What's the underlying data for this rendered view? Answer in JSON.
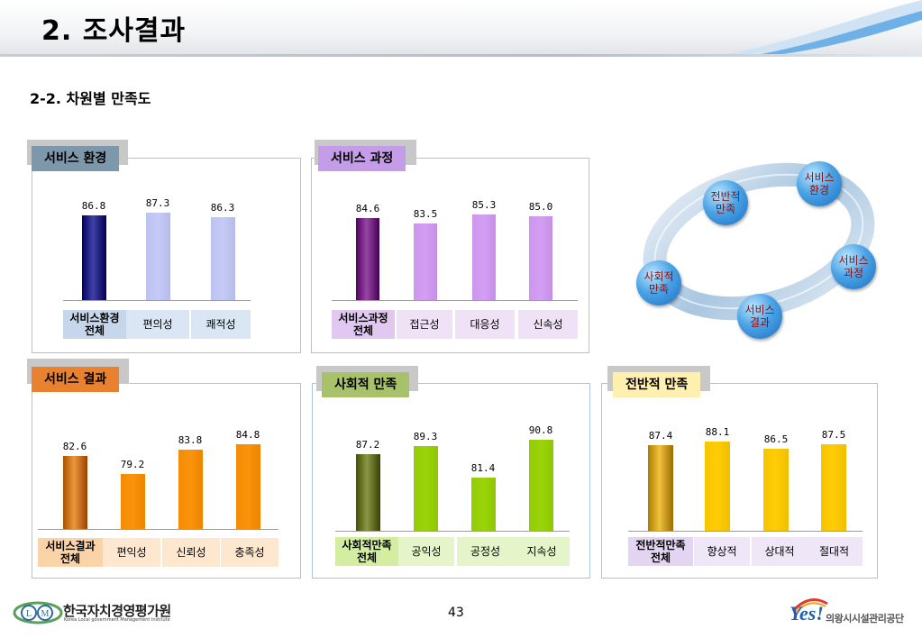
{
  "title": "2. 조사결과",
  "subtitle": "2-2. 차원별 만족도",
  "page_number": "43",
  "footer": {
    "left_org": "한국자치경영평가원",
    "left_org_en": "Korea Local government Management Institute",
    "right_logo_word": "Yes!",
    "right_org": "의왕시시설관리공단"
  },
  "cycle": {
    "nodes": [
      "서비스\n환경",
      "서비스\n과정",
      "서비스\n결과",
      "사회적\n만족",
      "전반적\n만족"
    ]
  },
  "chart_data": [
    {
      "type": "bar",
      "title": "서비스 환경",
      "categories": [
        "서비스환경\n전체",
        "편의성",
        "쾌적성"
      ],
      "values": [
        86.8,
        87.3,
        86.3
      ],
      "ylim": [
        0,
        100
      ],
      "colors": {
        "first": "#04046b",
        "rest": "#c6caf7",
        "tab": "#7d98ab",
        "tab_text": "#000000",
        "label_bg": "#dbe6f4",
        "first_label_bg": "#c6d7ec"
      }
    },
    {
      "type": "bar",
      "title": "서비스 과정",
      "categories": [
        "서비스과정\n전체",
        "접근성",
        "대응성",
        "신속성"
      ],
      "values": [
        84.6,
        83.5,
        85.3,
        85.0
      ],
      "ylim": [
        0,
        100
      ],
      "colors": {
        "first": "#5c0a6a",
        "rest": "#d39ef4",
        "tab": "#c49ce8",
        "tab_text": "#000000",
        "label_bg": "#efe2f6",
        "first_label_bg": "#e0c8f0"
      }
    },
    {
      "type": "bar",
      "title": "서비스 결과",
      "categories": [
        "서비스결과\n전체",
        "편익성",
        "신뢰성",
        "충족성"
      ],
      "values": [
        82.6,
        79.2,
        83.8,
        84.8
      ],
      "ylim": [
        0,
        100
      ],
      "colors": {
        "first": "#b25b00",
        "rest": "#fb930d",
        "tab": "#e98230",
        "tab_text": "#000000",
        "label_bg": "#fde7cf",
        "first_label_bg": "#fbd3a8"
      }
    },
    {
      "type": "bar",
      "title": "사회적 만족",
      "categories": [
        "사회적만족\n전체",
        "공익성",
        "공정성",
        "지속성"
      ],
      "values": [
        87.2,
        89.3,
        81.4,
        90.8
      ],
      "ylim": [
        0,
        100
      ],
      "colors": {
        "first": "#4f5a0a",
        "rest": "#9cd40c",
        "tab": "#a8c26b",
        "tab_text": "#000000",
        "label_bg": "#e6f5c9",
        "first_label_bg": "#d3eea1"
      }
    },
    {
      "type": "bar",
      "title": "전반적 만족",
      "categories": [
        "전반적만족\n전체",
        "향상적",
        "상대적",
        "절대적"
      ],
      "values": [
        87.4,
        88.1,
        86.5,
        87.5
      ],
      "ylim": [
        0,
        100
      ],
      "colors": {
        "first": "#b48600",
        "rest": "#fecd05",
        "tab": "#fff0b0",
        "tab_text": "#000000",
        "label_bg": "#efe6f7",
        "first_label_bg": "#e3d4f2"
      }
    }
  ]
}
